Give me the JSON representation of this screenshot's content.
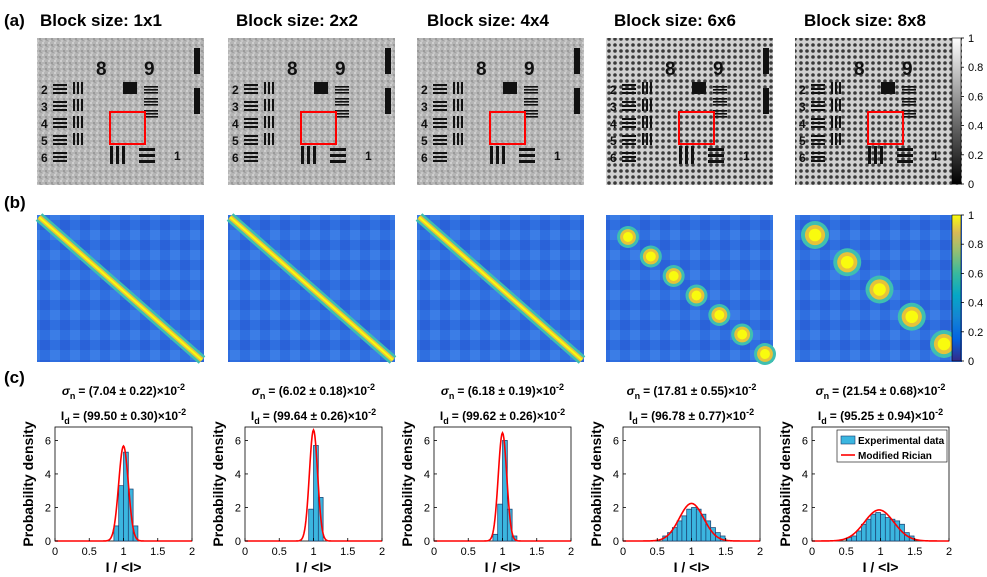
{
  "panel_labels": [
    "(a)",
    "(b)",
    "(c)"
  ],
  "columns": [
    {
      "title": "Block size: 1x1",
      "sigma_text": "= (7.04 ± 0.22)×10",
      "id_text": "= (99.50 ± 0.30)×10",
      "exp": "-2"
    },
    {
      "title": "Block size: 2x2",
      "sigma_text": "= (6.02 ± 0.18)×10",
      "id_text": "= (99.64 ± 0.26)×10",
      "exp": "-2"
    },
    {
      "title": "Block size: 4x4",
      "sigma_text": "= (6.18 ± 0.19)×10",
      "id_text": "= (99.62 ± 0.26)×10",
      "exp": "-2"
    },
    {
      "title": "Block size: 6x6",
      "sigma_text": "= (17.81 ± 0.55)×10",
      "id_text": "= (96.78 ± 0.77)×10",
      "exp": "-2"
    },
    {
      "title": "Block size: 8x8",
      "sigma_text": "= (21.54 ± 0.68)×10",
      "id_text": "= (95.25 ± 0.94)×10",
      "exp": "-2"
    }
  ],
  "sym_sigma": "σ",
  "sub_sigma": "n",
  "sym_id": "I",
  "sub_id": "d",
  "target_numbers": {
    "group_top_left": "8",
    "group_top_right": "9",
    "row_labels": [
      "2",
      "3",
      "4",
      "5",
      "6"
    ],
    "corner": "1"
  },
  "colorbar_ticks": [
    "1",
    "0.8",
    "0.6",
    "0.4",
    "0.2",
    "0"
  ],
  "colors": {
    "roi": "#ff0000",
    "bar_fill": "#3bb6e0",
    "bar_edge": "#1a3b6b",
    "fit_line": "#ff0000"
  },
  "chart_data": {
    "type": "bar",
    "xlabel": "I / <I>",
    "ylabel": "Probability density",
    "xlim": [
      0,
      2
    ],
    "ylim": [
      0,
      6.8
    ],
    "xticks": [
      "0",
      "0.5",
      "1",
      "1.5",
      "2"
    ],
    "yticks": [
      "0",
      "2",
      "4",
      "6"
    ],
    "legend": {
      "placement": "top-right",
      "entries": [
        "Experimental data",
        "Modified Rician"
      ],
      "shown_in_panel": 4
    },
    "panels": [
      {
        "sigma": 0.0704,
        "mean": 1.0,
        "bin_width": 0.0705,
        "bins": [
          [
            0.86,
            0.9
          ],
          [
            0.93,
            3.3
          ],
          [
            1.0,
            5.3
          ],
          [
            1.07,
            3.1
          ],
          [
            1.14,
            0.9
          ]
        ]
      },
      {
        "sigma": 0.0602,
        "mean": 1.0,
        "bin_width": 0.0705,
        "bins": [
          [
            0.93,
            1.9
          ],
          [
            1.0,
            5.7
          ],
          [
            1.07,
            2.6
          ]
        ]
      },
      {
        "sigma": 0.0618,
        "mean": 1.0,
        "bin_width": 0.0705,
        "bins": [
          [
            0.86,
            0.4
          ],
          [
            0.93,
            2.2
          ],
          [
            1.0,
            6.0
          ],
          [
            1.07,
            1.9
          ],
          [
            1.14,
            0.3
          ]
        ]
      },
      {
        "sigma": 0.1781,
        "mean": 1.0,
        "bin_width": 0.0705,
        "bins": [
          [
            0.58,
            0.3
          ],
          [
            0.65,
            0.5
          ],
          [
            0.72,
            0.8
          ],
          [
            0.79,
            1.2
          ],
          [
            0.86,
            1.5
          ],
          [
            0.93,
            1.9
          ],
          [
            1.0,
            2.0
          ],
          [
            1.07,
            1.9
          ],
          [
            1.14,
            1.6
          ],
          [
            1.21,
            1.2
          ],
          [
            1.28,
            0.8
          ],
          [
            1.35,
            0.5
          ],
          [
            1.42,
            0.3
          ]
        ]
      },
      {
        "sigma": 0.2154,
        "mean": 0.98,
        "bin_width": 0.0705,
        "bins": [
          [
            0.51,
            0.2
          ],
          [
            0.58,
            0.3
          ],
          [
            0.65,
            0.6
          ],
          [
            0.72,
            1.0
          ],
          [
            0.79,
            1.3
          ],
          [
            0.86,
            1.6
          ],
          [
            0.93,
            1.7
          ],
          [
            1.0,
            1.6
          ],
          [
            1.07,
            1.4
          ],
          [
            1.14,
            1.3
          ],
          [
            1.21,
            1.2
          ],
          [
            1.28,
            1.0
          ],
          [
            1.35,
            0.5
          ],
          [
            1.42,
            0.3
          ]
        ]
      }
    ]
  }
}
